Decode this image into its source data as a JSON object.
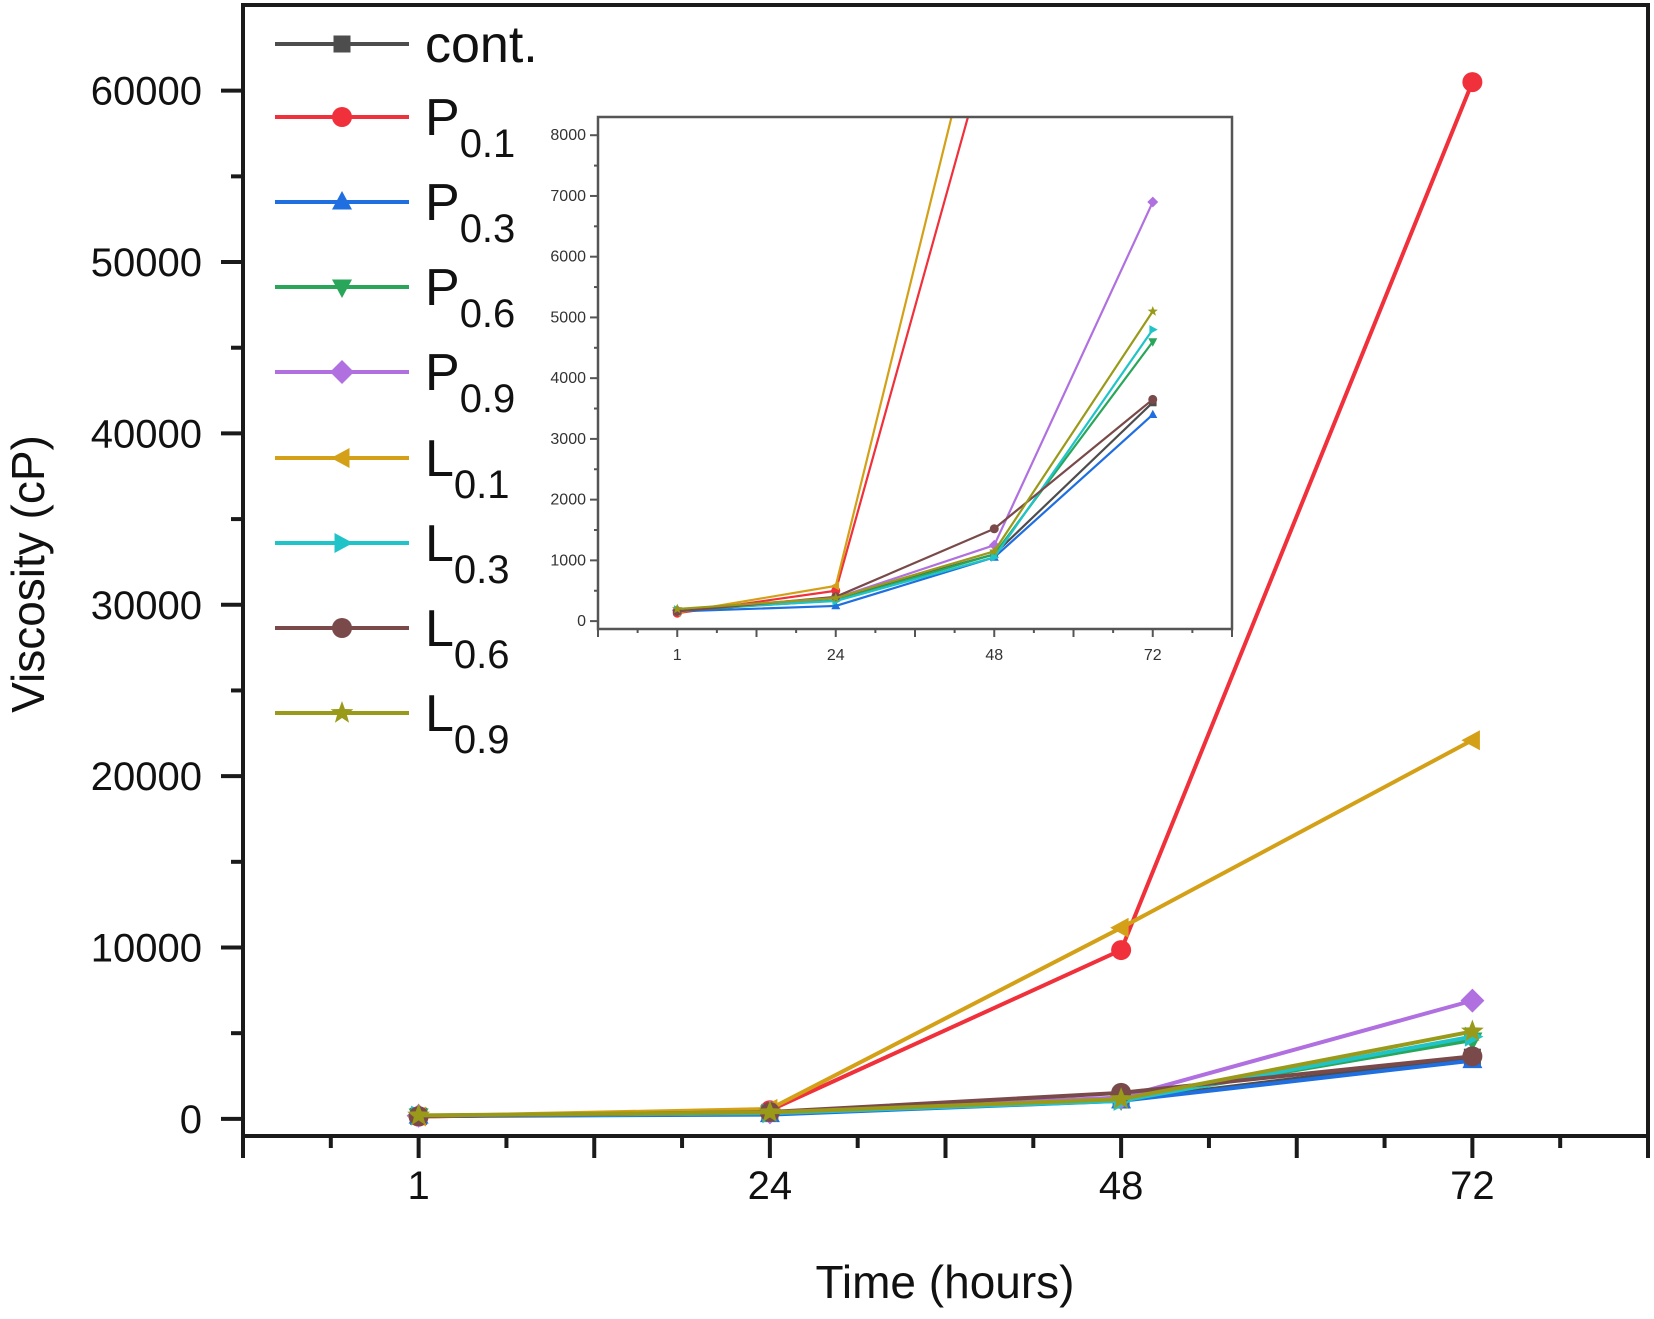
{
  "chart_data": {
    "type": "line",
    "xlabel": "Time (hours)",
    "ylabel": "Viscosity (cP)",
    "categories": [
      "1",
      "24",
      "48",
      "72"
    ],
    "ylim": [
      -1000,
      65000
    ],
    "yticks": [
      "0",
      "10000",
      "20000",
      "30000",
      "40000",
      "50000",
      "60000"
    ],
    "ytick_values": [
      0,
      10000,
      20000,
      30000,
      40000,
      50000,
      60000
    ],
    "grid": false,
    "legend_position": "top-left",
    "series": [
      {
        "name": "cont.",
        "base": "cont.",
        "sub": "",
        "color": "#4d4d4d",
        "marker": "square",
        "values": [
          150,
          380,
          1100,
          3600
        ]
      },
      {
        "name": "P0.1",
        "base": "P",
        "sub": "0.1",
        "color": "#f0303a",
        "marker": "circle",
        "values": [
          130,
          500,
          9850,
          60500
        ]
      },
      {
        "name": "P0.3",
        "base": "P",
        "sub": "0.3",
        "color": "#1f6fe0",
        "marker": "triangle-up",
        "values": [
          160,
          250,
          1050,
          3400
        ]
      },
      {
        "name": "P0.6",
        "base": "P",
        "sub": "0.6",
        "color": "#2aa65a",
        "marker": "triangle-down",
        "values": [
          170,
          340,
          1100,
          4600
        ]
      },
      {
        "name": "P0.9",
        "base": "P",
        "sub": "0.9",
        "color": "#b070e0",
        "marker": "diamond",
        "values": [
          180,
          380,
          1250,
          6900
        ]
      },
      {
        "name": "L0.1",
        "base": "L",
        "sub": "0.1",
        "color": "#d4a017",
        "marker": "triangle-left",
        "values": [
          140,
          580,
          11150,
          22100
        ]
      },
      {
        "name": "L0.3",
        "base": "L",
        "sub": "0.3",
        "color": "#20c4c8",
        "marker": "triangle-right",
        "values": [
          190,
          330,
          1050,
          4800
        ]
      },
      {
        "name": "L0.6",
        "base": "L",
        "sub": "0.6",
        "color": "#7a4a4a",
        "marker": "hexagon",
        "values": [
          160,
          400,
          1520,
          3650
        ]
      },
      {
        "name": "L0.9",
        "base": "L",
        "sub": "0.9",
        "color": "#9a9a1a",
        "marker": "star",
        "values": [
          200,
          380,
          1150,
          5100
        ]
      }
    ],
    "inset": {
      "type": "line",
      "categories": [
        "1",
        "24",
        "48",
        "72"
      ],
      "ylim": [
        -130,
        8300
      ],
      "yticks": [
        "0",
        "1000",
        "2000",
        "3000",
        "4000",
        "5000",
        "6000",
        "7000",
        "8000"
      ],
      "ytick_values": [
        0,
        1000,
        2000,
        3000,
        4000,
        5000,
        6000,
        7000,
        8000
      ]
    }
  }
}
